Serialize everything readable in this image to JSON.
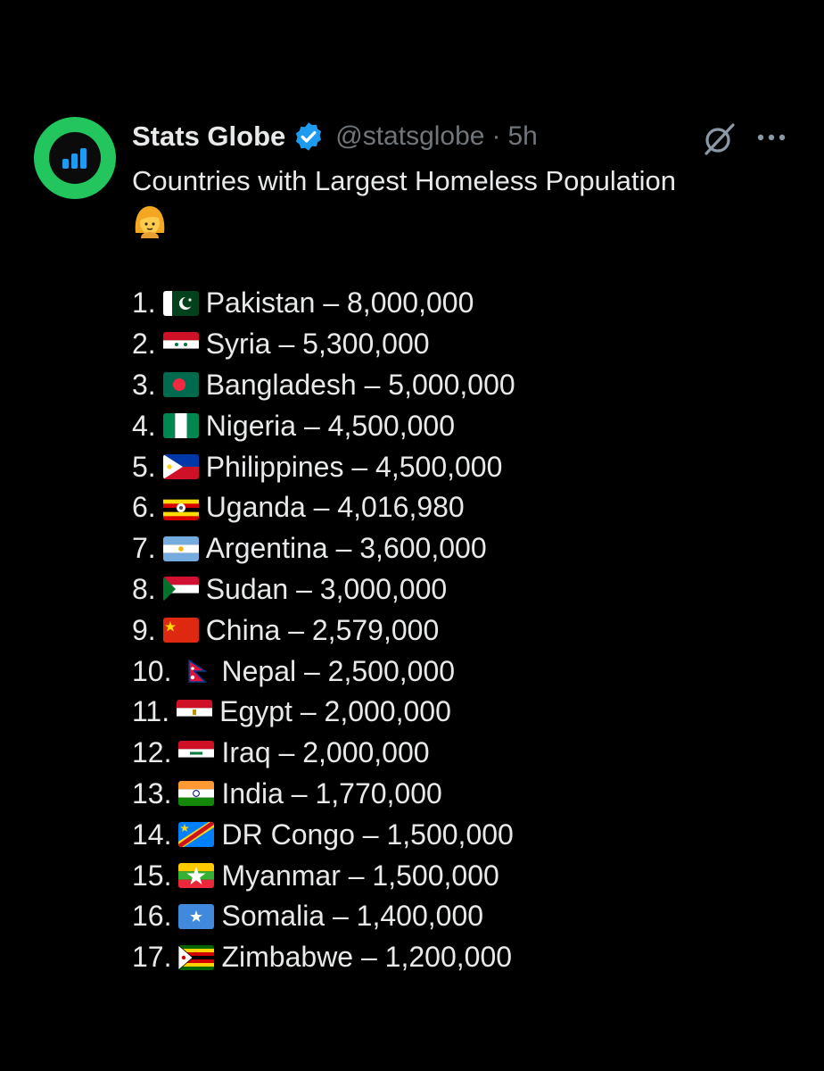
{
  "account": {
    "name": "Stats Globe",
    "handle": "@statsglobe",
    "separator": "·",
    "time": "5h",
    "brand_color": "#22c55e",
    "verified_color": "#1d9bf0"
  },
  "tweet": {
    "title": "Countries with Largest Homeless Population",
    "emoji": "person-with-blond-hair-emoji"
  },
  "list": [
    {
      "rank": "1.",
      "country": "Pakistan",
      "value": "8,000,000",
      "flag": "pk"
    },
    {
      "rank": "2.",
      "country": "Syria",
      "value": "5,300,000",
      "flag": "sy"
    },
    {
      "rank": "3.",
      "country": "Bangladesh",
      "value": "5,000,000",
      "flag": "bd"
    },
    {
      "rank": "4.",
      "country": "Nigeria",
      "value": "4,500,000",
      "flag": "ng"
    },
    {
      "rank": "5.",
      "country": "Philippines",
      "value": "4,500,000",
      "flag": "ph"
    },
    {
      "rank": "6.",
      "country": "Uganda",
      "value": "4,016,980",
      "flag": "ug"
    },
    {
      "rank": "7.",
      "country": "Argentina",
      "value": "3,600,000",
      "flag": "ar"
    },
    {
      "rank": "8.",
      "country": "Sudan",
      "value": "3,000,000",
      "flag": "sd"
    },
    {
      "rank": "9.",
      "country": "China",
      "value": "2,579,000",
      "flag": "cn"
    },
    {
      "rank": "10.",
      "country": "Nepal",
      "value": "2,500,000",
      "flag": "np"
    },
    {
      "rank": "11.",
      "country": "Egypt",
      "value": "2,000,000",
      "flag": "eg"
    },
    {
      "rank": "12.",
      "country": "Iraq",
      "value": "2,000,000",
      "flag": "iq"
    },
    {
      "rank": "13.",
      "country": "India",
      "value": "1,770,000",
      "flag": "in"
    },
    {
      "rank": "14.",
      "country": "DR Congo",
      "value": "1,500,000",
      "flag": "cd"
    },
    {
      "rank": "15.",
      "country": "Myanmar",
      "value": "1,500,000",
      "flag": "mm"
    },
    {
      "rank": "16.",
      "country": "Somalia",
      "value": "1,400,000",
      "flag": "so"
    },
    {
      "rank": "17.",
      "country": "Zimbabwe",
      "value": "1,200,000",
      "flag": "zw"
    }
  ],
  "list_separator": " – "
}
